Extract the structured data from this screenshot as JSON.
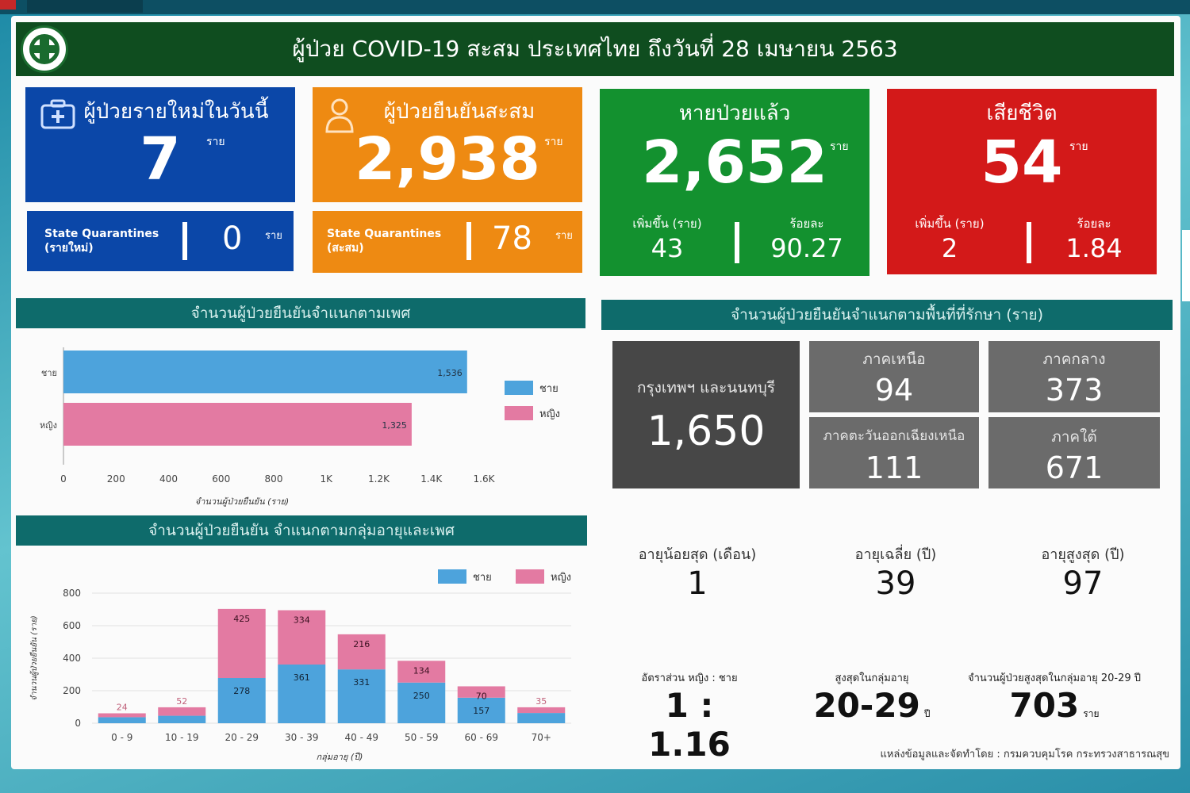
{
  "header": {
    "title": "ผู้ป่วย COVID-19 สะสม  ประเทศไทย ถึงวันที่ 28 เมษายน 2563"
  },
  "cards": [
    {
      "label": "ผู้ป่วยรายใหม่ในวันนี้",
      "value": "7",
      "unit": "ราย",
      "color": "#0b47a8"
    },
    {
      "label": "ผู้ป่วยยืนยันสะสม",
      "value": "2,938",
      "unit": "ราย",
      "color": "#ee8a12"
    },
    {
      "label": "หายป่วยแล้ว",
      "value": "2,652",
      "unit": "ราย",
      "color": "#13912f"
    },
    {
      "label": "เสียชีวิต",
      "value": "54",
      "unit": "ราย",
      "color": "#d31919"
    }
  ],
  "sub_new": {
    "label1": "State Quarantines",
    "label2": "(รายใหม่)",
    "value": "0",
    "unit": "ราย"
  },
  "sub_total": {
    "label1": "State Quarantines",
    "label2": "(สะสม)",
    "value": "78",
    "unit": "ราย"
  },
  "recovered_stats": [
    {
      "label": "เพิ่มขึ้น (ราย)",
      "value": "43"
    },
    {
      "label": "ร้อยละ",
      "value": "90.27"
    }
  ],
  "death_stats": [
    {
      "label": "เพิ่มขึ้น (ราย)",
      "value": "2"
    },
    {
      "label": "ร้อยละ",
      "value": "1.84"
    }
  ],
  "sections": {
    "gender": "จำนวนผู้ป่วยยืนยันจำแนกตามเพศ",
    "region": "จำนวนผู้ป่วยยืนยันจำแนกตามพื้นที่ที่รักษา (ราย)",
    "age": "จำนวนผู้ป่วยยืนยัน จำแนกตามกลุ่มอายุและเพศ"
  },
  "regions": {
    "bangkok": {
      "label": "กรุงเทพฯ และนนทบุรี",
      "value": "1,650"
    },
    "north": {
      "label": "ภาคเหนือ",
      "value": "94"
    },
    "central": {
      "label": "ภาคกลาง",
      "value": "373"
    },
    "northeast": {
      "label": "ภาคตะวันออกเฉียงเหนือ",
      "value": "111"
    },
    "south": {
      "label": "ภาคใต้",
      "value": "671"
    }
  },
  "age_info": [
    {
      "label": "อายุน้อยสุด (เดือน)",
      "value": "1"
    },
    {
      "label": "อายุเฉลี่ย (ปี)",
      "value": "39"
    },
    {
      "label": "อายุสูงสุด (ปี)",
      "value": "97"
    }
  ],
  "bottom_stats": {
    "ratio": {
      "label": "อัตราส่วน หญิง : ชาย",
      "value": "1 : 1.16"
    },
    "top_group": {
      "label": "สูงสุดในกลุ่มอายุ",
      "value": "20-29",
      "unit": "ปี"
    },
    "top_count": {
      "label": "จำนวนผู้ป่วยสูงสุดในกลุ่มอายุ 20-29 ปี",
      "value": "703",
      "unit": "ราย"
    }
  },
  "footer": "แหล่งข้อมูลและจัดทำโดย : กรมควบคุมโรค กระทรวงสาธารณสุข",
  "chart_data": [
    {
      "type": "bar",
      "orientation": "horizontal",
      "categories": [
        "ชาย",
        "หญิง"
      ],
      "values": [
        1536,
        1325
      ],
      "data_labels": [
        "1,536",
        "1,325"
      ],
      "xlabel": "จำนวนผู้ป่วยยืนยัน (ราย)",
      "xlim": [
        0,
        1600
      ],
      "ticks": [
        "0",
        "200",
        "400",
        "600",
        "800",
        "1K",
        "1.2K",
        "1.4K",
        "1.6K"
      ],
      "tick_values": [
        0,
        200,
        400,
        600,
        800,
        1000,
        1200,
        1400,
        1600
      ],
      "colors": [
        "#4da3dc",
        "#e37aa2"
      ],
      "legend": "right"
    },
    {
      "type": "bar",
      "stacked": true,
      "categories": [
        "0 - 9",
        "10 - 19",
        "20 - 29",
        "30 - 39",
        "40 - 49",
        "50 - 59",
        "60 - 69",
        "70+"
      ],
      "series": [
        {
          "name": "ชาย",
          "values": [
            37,
            46,
            278,
            361,
            331,
            250,
            157,
            63
          ],
          "labels": [
            "",
            "",
            "278",
            "361",
            "331",
            "250",
            "157",
            ""
          ],
          "color": "#4da3dc"
        },
        {
          "name": "หญิง",
          "values": [
            24,
            52,
            425,
            334,
            216,
            134,
            70,
            35
          ],
          "labels": [
            "24",
            "52",
            "425",
            "334",
            "216",
            "134",
            "70",
            "35"
          ],
          "color": "#e37aa2"
        }
      ],
      "xlabel": "กลุ่มอายุ (ปี)",
      "ylabel": "จำนวนผู้ป่วยยืนยัน (ราย)",
      "ylim": [
        0,
        800
      ],
      "ticks": [
        "0",
        "200",
        "400",
        "600",
        "800"
      ],
      "tick_values": [
        0,
        200,
        400,
        600,
        800
      ],
      "legend": "top-right"
    }
  ]
}
